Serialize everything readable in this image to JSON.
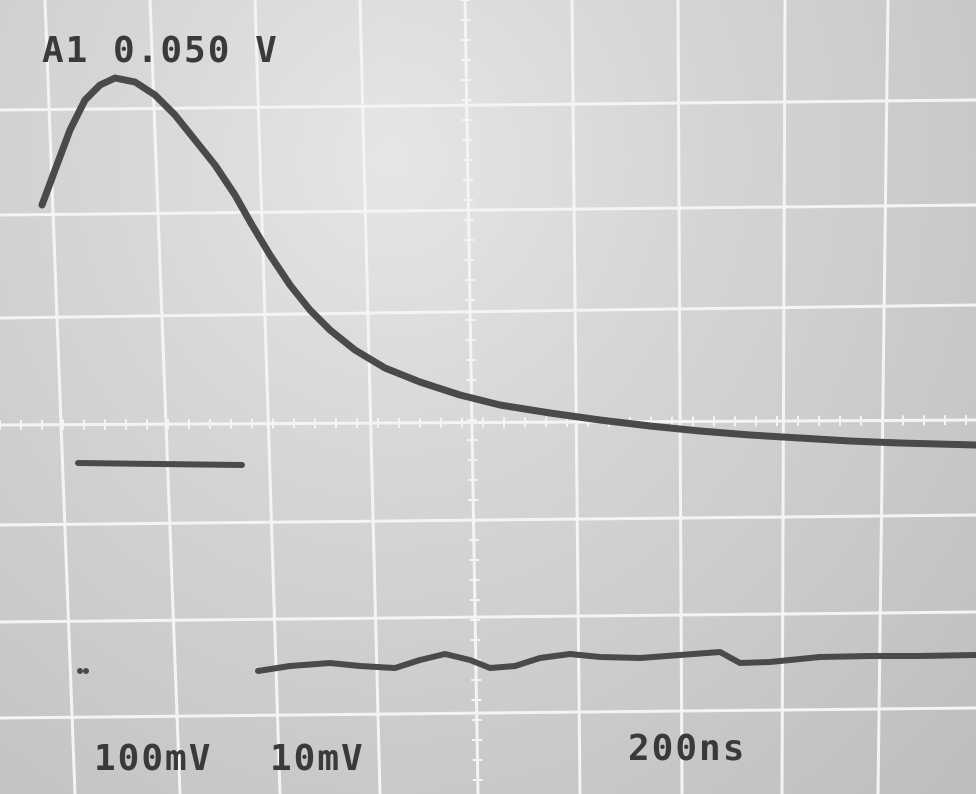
{
  "readout": {
    "trigger": "A1  0.050 V",
    "ch1_scale": "100mV",
    "ch2_scale": "10mV",
    "timebase": "200ns"
  },
  "colors": {
    "trace": "#4a4a4a",
    "grid": "#f4f4f4",
    "text": "#3a3a3a"
  }
}
